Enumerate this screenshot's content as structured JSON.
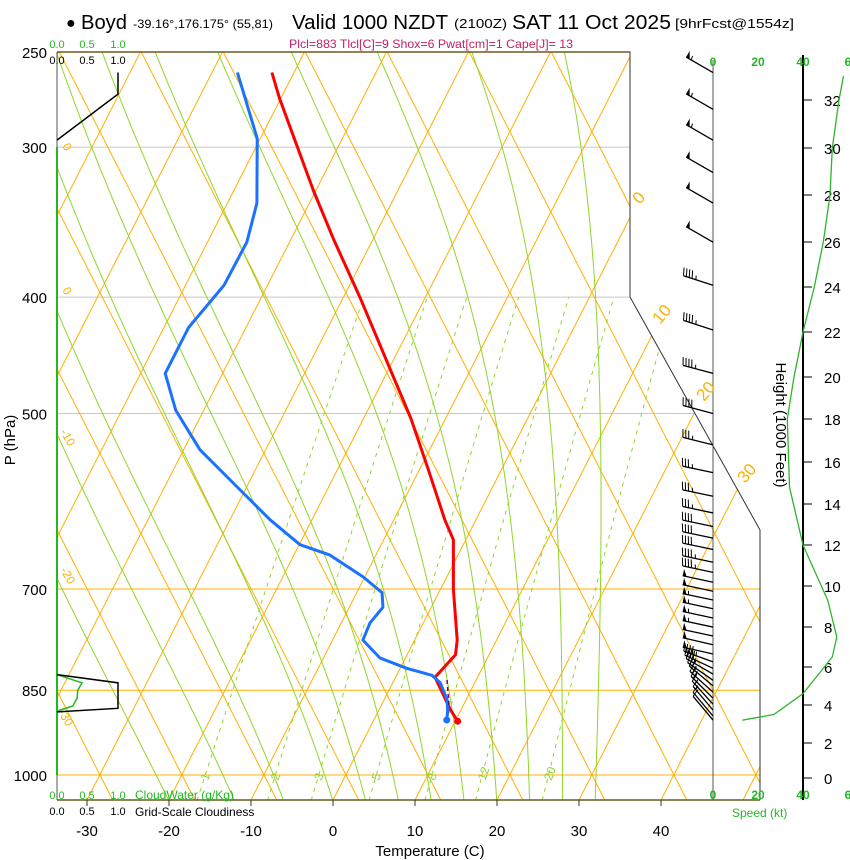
{
  "header": {
    "station_marker": "●",
    "station": "Boyd",
    "coords": "-39.16°,176.175° (55,81)",
    "valid": "Valid 1000 NZDT",
    "utc": "(2100Z)",
    "date": "SAT 11 Oct 2025",
    "forecast": "[9hrFcst@1554z]",
    "indices": "Plcl=883 Tlcl[C]=9 Shox=6 Pwat[cm]=1 Cape[J]= 13"
  },
  "colors": {
    "temperature": "#ff0000",
    "dewpoint": "#1a72ff",
    "isotherm": "#ffb000",
    "moist_adiabat": "#8fd62a",
    "cloud_water": "#22b822",
    "indices_text": "#c0206a"
  },
  "chart_data": {
    "type": "line",
    "subtype": "skew-t log-p sounding",
    "xlabel": "Temperature (C)",
    "ylabel": "P (hPa)",
    "right_label": "Height (1000 Feet)",
    "speed_label": "Speed (kt)",
    "x_ticks": [
      "-30",
      "-20",
      "-10",
      "0",
      "10",
      "20",
      "30",
      "40"
    ],
    "x_tick_values": [
      -30,
      -20,
      -10,
      0,
      10,
      20,
      30,
      40
    ],
    "y_ticks": [
      "250",
      "300",
      "400",
      "500",
      "700",
      "850",
      "1000"
    ],
    "y_tick_values": [
      250,
      300,
      400,
      500,
      700,
      850,
      1000
    ],
    "height_ticks": [
      "0",
      "2",
      "4",
      "6",
      "8",
      "10",
      "12",
      "14",
      "16",
      "18",
      "20",
      "22",
      "24",
      "26",
      "28",
      "30",
      "32"
    ],
    "speed_ticks_top": [
      "0",
      "20",
      "40",
      "6"
    ],
    "speed_ticks_bottom": [
      "0",
      "20",
      "40",
      "6"
    ],
    "isotherm_labels_right": [
      "0",
      "10",
      "20",
      "30"
    ],
    "adiabat_labels_left": [
      "0",
      "0",
      "-10",
      "-20",
      "-30"
    ],
    "mixing_ratio_labels": [
      "1",
      "2",
      "3",
      "5",
      "8",
      "12",
      "20"
    ],
    "mixing_ratio_values": [
      1,
      2,
      3,
      5,
      8,
      12,
      20
    ],
    "cloud_scale": {
      "water_ticks": [
        "0.0",
        "0.5",
        "1.0"
      ],
      "water_label": "CloudWater (g/Kg)",
      "cover_ticks": [
        "0.0",
        "0.5",
        "1.0"
      ],
      "cover_label": "Grid-Scale Cloudiness"
    },
    "series": [
      {
        "name": "Temperature",
        "p": [
          902,
          881,
          829,
          794,
          772,
          701,
          637,
          613,
          557,
          505,
          400,
          358,
          326,
          285,
          273,
          260
        ],
        "t": [
          10.3,
          8.6,
          4.8,
          5.9,
          5.2,
          1.6,
          -1.5,
          -3.8,
          -8.9,
          -14.2,
          -28.0,
          -34.8,
          -40.3,
          -47.8,
          -50.2,
          -52.7
        ]
      },
      {
        "name": "Dewpoint",
        "p": [
          900,
          886,
          866,
          838,
          826,
          815,
          799,
          772,
          747,
          725,
          705,
          684,
          656,
          643,
          613,
          579,
          536,
          497,
          463,
          424,
          391,
          360,
          334,
          295,
          260
        ],
        "t": [
          8.9,
          8.5,
          7.7,
          5.8,
          4.3,
          0.8,
          -3.1,
          -6.3,
          -6.5,
          -5.9,
          -6.9,
          -10.2,
          -15.6,
          -19.9,
          -25.1,
          -30.6,
          -38.0,
          -43.4,
          -47.0,
          -47.0,
          -45.3,
          -45.2,
          -46.4,
          -50.4,
          -56.9
        ]
      }
    ],
    "surface_points": {
      "temperature": {
        "p": 902,
        "t": 10.3
      },
      "dewpoint": {
        "p": 900,
        "t": 8.9
      }
    },
    "cloudiness": {
      "p": [
        260,
        271,
        296,
        825,
        838,
        880,
        886
      ],
      "fraction": [
        1.0,
        1.0,
        0.0,
        0.0,
        1.0,
        1.0,
        0.0
      ]
    },
    "cloud_water": {
      "p": [
        825,
        838,
        850,
        863,
        876,
        883,
        886
      ],
      "g_per_kg": [
        0,
        0.41,
        0.34,
        0.33,
        0.26,
        0.05,
        0
      ]
    },
    "wind_speed_profile": {
      "height_kft": [
        3.2,
        3.5,
        4.6,
        6.5,
        7.5,
        9.3,
        12,
        14.8,
        18,
        20,
        22,
        24,
        26,
        28,
        30,
        32,
        33
      ],
      "speed_kt": [
        13,
        27,
        40,
        53,
        55,
        51,
        40,
        34,
        33,
        36,
        40,
        45,
        49,
        52,
        53,
        56,
        58
      ]
    },
    "wind_barbs": [
      {
        "p": 260,
        "speed_kt": 55,
        "dir_deg": 300
      },
      {
        "p": 279,
        "speed_kt": 55,
        "dir_deg": 300
      },
      {
        "p": 296,
        "speed_kt": 55,
        "dir_deg": 300
      },
      {
        "p": 315,
        "speed_kt": 50,
        "dir_deg": 300
      },
      {
        "p": 334,
        "speed_kt": 50,
        "dir_deg": 300
      },
      {
        "p": 360,
        "speed_kt": 50,
        "dir_deg": 300
      },
      {
        "p": 391,
        "speed_kt": 45,
        "dir_deg": 288
      },
      {
        "p": 426,
        "speed_kt": 45,
        "dir_deg": 288
      },
      {
        "p": 463,
        "speed_kt": 45,
        "dir_deg": 285
      },
      {
        "p": 500,
        "speed_kt": 40,
        "dir_deg": 285
      },
      {
        "p": 531,
        "speed_kt": 35,
        "dir_deg": 284
      },
      {
        "p": 560,
        "speed_kt": 35,
        "dir_deg": 282
      },
      {
        "p": 586,
        "speed_kt": 35,
        "dir_deg": 282
      },
      {
        "p": 605,
        "speed_kt": 35,
        "dir_deg": 282
      },
      {
        "p": 621,
        "speed_kt": 40,
        "dir_deg": 282
      },
      {
        "p": 635,
        "speed_kt": 40,
        "dir_deg": 282
      },
      {
        "p": 649,
        "speed_kt": 40,
        "dir_deg": 282
      },
      {
        "p": 665,
        "speed_kt": 45,
        "dir_deg": 282
      },
      {
        "p": 678,
        "speed_kt": 45,
        "dir_deg": 282
      },
      {
        "p": 691,
        "speed_kt": 50,
        "dir_deg": 282
      },
      {
        "p": 703,
        "speed_kt": 50,
        "dir_deg": 282
      },
      {
        "p": 715,
        "speed_kt": 55,
        "dir_deg": 282
      },
      {
        "p": 727,
        "speed_kt": 55,
        "dir_deg": 282
      },
      {
        "p": 740,
        "speed_kt": 55,
        "dir_deg": 282
      },
      {
        "p": 753,
        "speed_kt": 55,
        "dir_deg": 282
      },
      {
        "p": 766,
        "speed_kt": 50,
        "dir_deg": 282
      },
      {
        "p": 779,
        "speed_kt": 50,
        "dir_deg": 283
      },
      {
        "p": 793,
        "speed_kt": 50,
        "dir_deg": 283
      },
      {
        "p": 805,
        "speed_kt": 45,
        "dir_deg": 290
      },
      {
        "p": 815,
        "speed_kt": 40,
        "dir_deg": 295
      },
      {
        "p": 824,
        "speed_kt": 35,
        "dir_deg": 300
      },
      {
        "p": 834,
        "speed_kt": 30,
        "dir_deg": 305
      },
      {
        "p": 843,
        "speed_kt": 25,
        "dir_deg": 310
      },
      {
        "p": 853,
        "speed_kt": 25,
        "dir_deg": 312
      },
      {
        "p": 863,
        "speed_kt": 20,
        "dir_deg": 315
      },
      {
        "p": 873,
        "speed_kt": 15,
        "dir_deg": 318
      },
      {
        "p": 883,
        "speed_kt": 15,
        "dir_deg": 320
      },
      {
        "p": 893,
        "speed_kt": 10,
        "dir_deg": 320
      },
      {
        "p": 900,
        "speed_kt": 10,
        "dir_deg": 320
      }
    ]
  }
}
